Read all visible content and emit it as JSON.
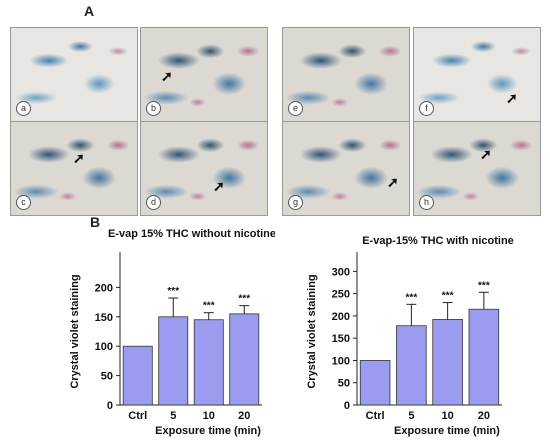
{
  "figure": {
    "panel_a_label": "A",
    "panel_b_label": "B",
    "micrograph_labels": [
      "a",
      "b",
      "c",
      "d",
      "e",
      "f",
      "g",
      "h"
    ],
    "arrow_glyph": "➚",
    "significance_marker": "***"
  },
  "chart_data": [
    {
      "type": "bar",
      "title": "E-vap 15% THC without nicotine",
      "xlabel": "Exposure time (min)",
      "ylabel": "Crystal violet staining",
      "categories": [
        "Ctrl",
        "5",
        "10",
        "20"
      ],
      "values": [
        100,
        150,
        145,
        155
      ],
      "errors": [
        0,
        32,
        12,
        14
      ],
      "significance": [
        "",
        "***",
        "***",
        "***"
      ],
      "ylim": [
        0,
        250
      ],
      "yticks": [
        0,
        50,
        100,
        150,
        200
      ],
      "bar_color": "#9b9cf0",
      "bar_edge": "#333333"
    },
    {
      "type": "bar",
      "title": "E-vap-15% THC with nicotine",
      "xlabel": "Exposure time (min)",
      "ylabel": "Crystal violet staining",
      "categories": [
        "Ctrl",
        "5",
        "10",
        "20"
      ],
      "values": [
        100,
        178,
        192,
        215
      ],
      "errors": [
        0,
        48,
        38,
        38
      ],
      "significance": [
        "",
        "***",
        "***",
        "***"
      ],
      "ylim": [
        0,
        330
      ],
      "yticks": [
        0,
        50,
        100,
        150,
        200,
        250,
        300
      ],
      "bar_color": "#9b9cf0",
      "bar_edge": "#333333"
    }
  ]
}
